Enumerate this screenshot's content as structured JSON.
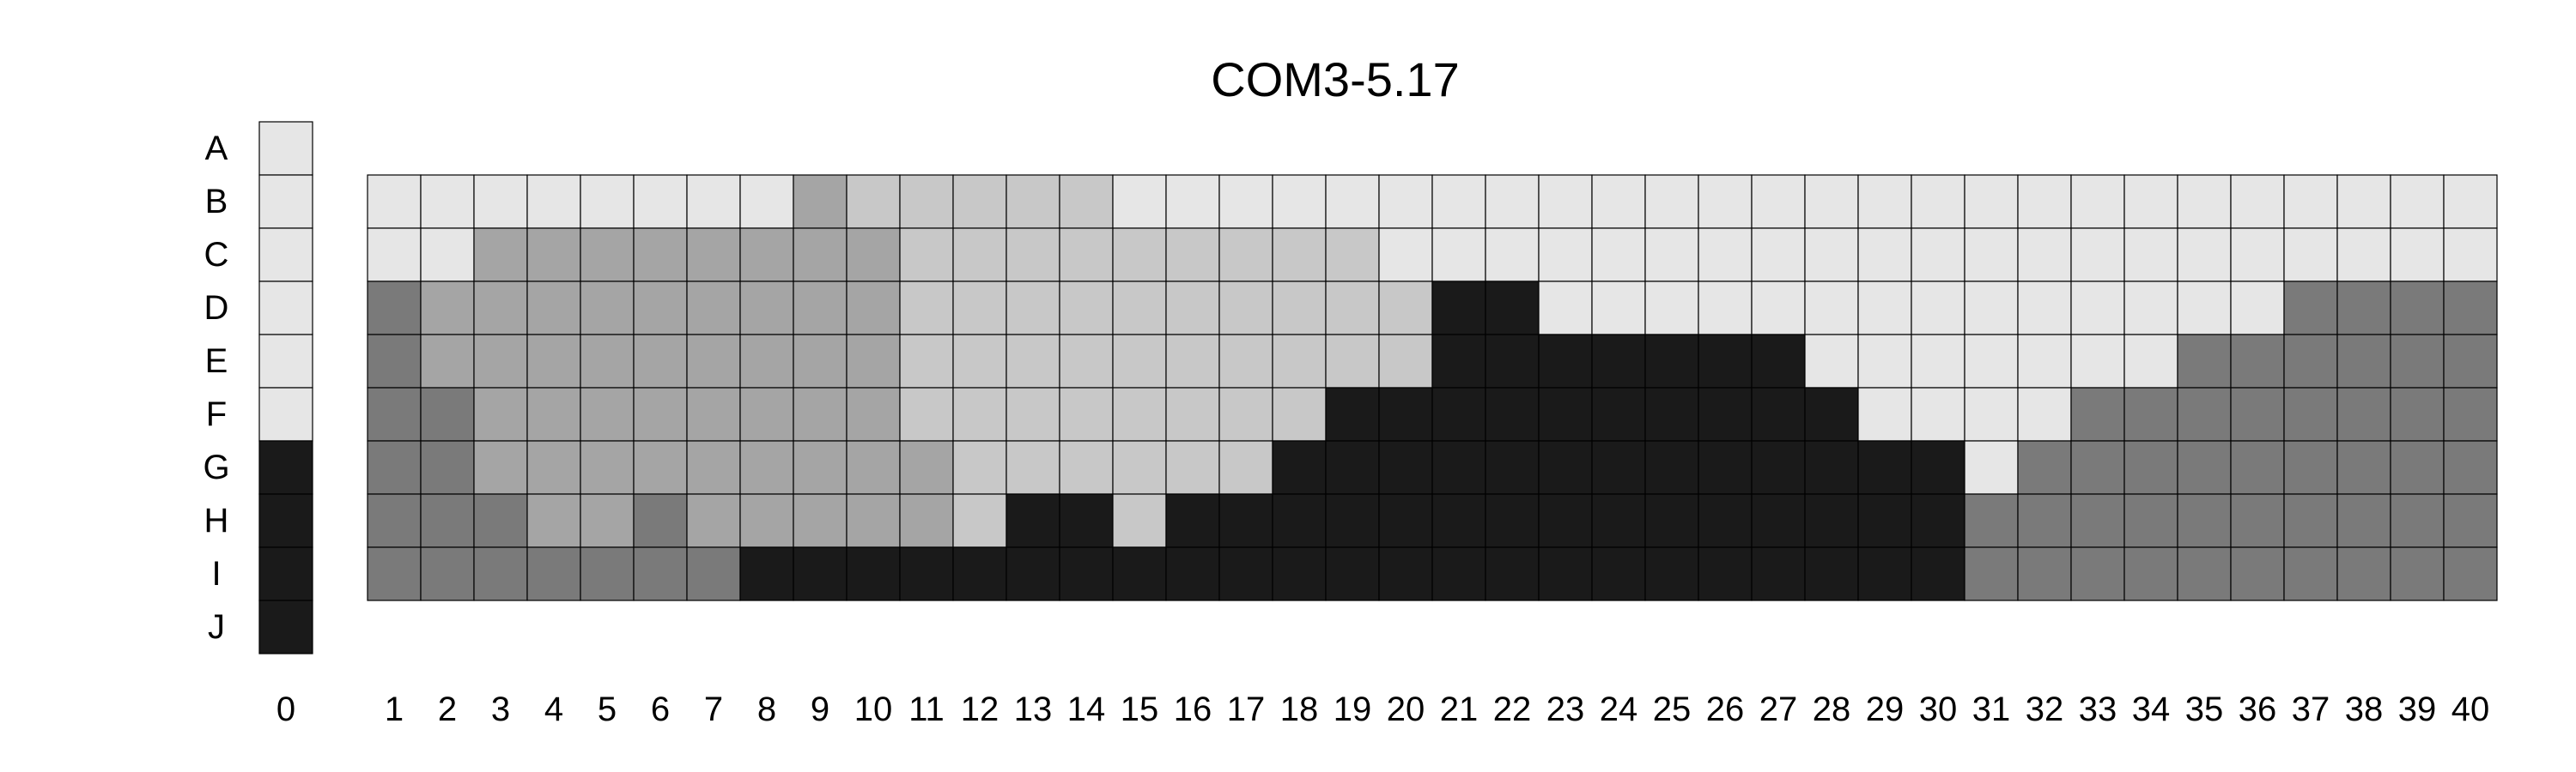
{
  "chart_data": {
    "type": "heatmap",
    "title": "COM3-5.17",
    "row_labels": [
      "A",
      "B",
      "C",
      "D",
      "E",
      "F",
      "G",
      "H",
      "I",
      "J"
    ],
    "key_column_label": "0",
    "key_column": [
      1,
      1,
      1,
      1,
      1,
      1,
      5,
      5,
      5,
      5
    ],
    "columns": [
      "1",
      "2",
      "3",
      "4",
      "5",
      "6",
      "7",
      "8",
      "9",
      "10",
      "11",
      "12",
      "13",
      "14",
      "15",
      "16",
      "17",
      "18",
      "19",
      "20",
      "21",
      "22",
      "23",
      "24",
      "25",
      "26",
      "27",
      "28",
      "29",
      "30",
      "31",
      "32",
      "33",
      "34",
      "35",
      "36",
      "37",
      "38",
      "39",
      "40"
    ],
    "grid_rows": [
      "B",
      "C",
      "D",
      "E",
      "F",
      "G",
      "H",
      "I"
    ],
    "grid_values": [
      [
        1,
        1,
        1,
        1,
        1,
        1,
        1,
        1,
        3,
        2,
        2,
        2,
        2,
        2,
        1,
        1,
        1,
        1,
        1,
        1,
        1,
        1,
        1,
        1,
        1,
        1,
        1,
        1,
        1,
        1,
        1,
        1,
        1,
        1,
        1,
        1,
        1,
        1,
        1,
        1
      ],
      [
        1,
        1,
        3,
        3,
        3,
        3,
        3,
        3,
        3,
        3,
        2,
        2,
        2,
        2,
        2,
        2,
        2,
        2,
        2,
        1,
        1,
        1,
        1,
        1,
        1,
        1,
        1,
        1,
        1,
        1,
        1,
        1,
        1,
        1,
        1,
        1,
        1,
        1,
        1,
        1
      ],
      [
        4,
        3,
        3,
        3,
        3,
        3,
        3,
        3,
        3,
        3,
        2,
        2,
        2,
        2,
        2,
        2,
        2,
        2,
        2,
        2,
        5,
        5,
        1,
        1,
        1,
        1,
        1,
        1,
        1,
        1,
        1,
        1,
        1,
        1,
        1,
        1,
        4,
        4,
        4,
        4
      ],
      [
        4,
        3,
        3,
        3,
        3,
        3,
        3,
        3,
        3,
        3,
        2,
        2,
        2,
        2,
        2,
        2,
        2,
        2,
        2,
        2,
        5,
        5,
        5,
        5,
        5,
        5,
        5,
        1,
        1,
        1,
        1,
        1,
        1,
        1,
        4,
        4,
        4,
        4,
        4,
        4
      ],
      [
        4,
        4,
        3,
        3,
        3,
        3,
        3,
        3,
        3,
        3,
        2,
        2,
        2,
        2,
        2,
        2,
        2,
        2,
        5,
        5,
        5,
        5,
        5,
        5,
        5,
        5,
        5,
        5,
        1,
        1,
        1,
        1,
        4,
        4,
        4,
        4,
        4,
        4,
        4,
        4
      ],
      [
        4,
        4,
        3,
        3,
        3,
        3,
        3,
        3,
        3,
        3,
        3,
        2,
        2,
        2,
        2,
        2,
        2,
        5,
        5,
        5,
        5,
        5,
        5,
        5,
        5,
        5,
        5,
        5,
        5,
        5,
        1,
        4,
        4,
        4,
        4,
        4,
        4,
        4,
        4,
        4
      ],
      [
        4,
        4,
        4,
        3,
        3,
        4,
        3,
        3,
        3,
        3,
        3,
        2,
        5,
        5,
        2,
        5,
        5,
        5,
        5,
        5,
        5,
        5,
        5,
        5,
        5,
        5,
        5,
        5,
        5,
        5,
        4,
        4,
        4,
        4,
        4,
        4,
        4,
        4,
        4,
        4
      ],
      [
        4,
        4,
        4,
        4,
        4,
        4,
        4,
        5,
        5,
        5,
        5,
        5,
        5,
        5,
        5,
        5,
        5,
        5,
        5,
        5,
        5,
        5,
        5,
        5,
        5,
        5,
        5,
        5,
        5,
        5,
        4,
        4,
        4,
        4,
        4,
        4,
        4,
        4,
        4,
        4
      ]
    ],
    "colors": {
      "1": "#e6e6e6",
      "2": "#c8c8c8",
      "3": "#a5a5a5",
      "4": "#7a7a7a",
      "5": "#1a1a1a"
    },
    "grid": true
  }
}
